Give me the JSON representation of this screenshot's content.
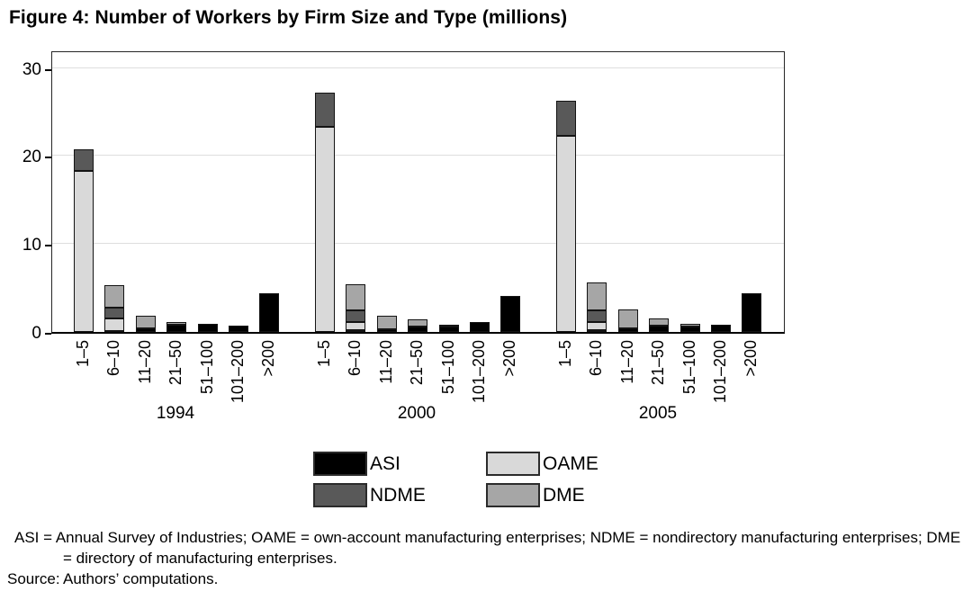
{
  "figure": {
    "title": "Figure 4: Number of Workers by Firm Size and Type (millions)",
    "notes": "ASI = Annual Survey of Industries; OAME = own-account manufacturing enterprises; NDME = nondirectory manufacturing enterprises; DME = directory of manufacturing enterprises.",
    "source_label": "Source:",
    "source_text": "Authors’ computations."
  },
  "chart_data": {
    "type": "bar",
    "stacked": true,
    "title": "Figure 4: Number of Workers by Firm Size and Type (millions)",
    "xlabel": "",
    "ylabel": "",
    "ylim": [
      0,
      32.1
    ],
    "yticks": [
      0,
      10,
      20,
      30
    ],
    "grid": true,
    "legend_position": "bottom",
    "bar_outline_color": "#141414",
    "size_categories": [
      "1–5",
      "6–10",
      "11–20",
      "21–50",
      "51–100",
      "101–200",
      ">200"
    ],
    "groups": [
      "1994",
      "2000",
      "2005"
    ],
    "stack_order_note": "series listed bottom-to-top of stack; values arrays follow size_categories order",
    "series": [
      {
        "name": "ASI",
        "color": "#000000",
        "values": {
          "1994": [
            0,
            0.15,
            0.4,
            0.85,
            0.9,
            0.7,
            4.4
          ],
          "2000": [
            0,
            0.25,
            0.3,
            0.6,
            0.6,
            1.1,
            4.1
          ],
          "2005": [
            0,
            0.25,
            0.4,
            0.7,
            0.65,
            0.8,
            4.4
          ]
        }
      },
      {
        "name": "OAME",
        "color": "#d9d9d9",
        "values": {
          "1994": [
            18.3,
            1.4,
            0,
            0,
            0,
            0,
            0
          ],
          "2000": [
            23.3,
            0.9,
            0,
            0,
            0,
            0,
            0
          ],
          "2005": [
            22.3,
            0.9,
            0,
            0,
            0,
            0,
            0
          ]
        }
      },
      {
        "name": "NDME",
        "color": "#595959",
        "values": {
          "1994": [
            2.5,
            1.2,
            0,
            0,
            0,
            0,
            0
          ],
          "2000": [
            3.9,
            1.3,
            0,
            0,
            0,
            0,
            0
          ],
          "2005": [
            4.0,
            1.3,
            0,
            0,
            0,
            0,
            0
          ]
        }
      },
      {
        "name": "DME",
        "color": "#a6a6a6",
        "values": {
          "1994": [
            0,
            2.55,
            1.45,
            0.3,
            0,
            0,
            0
          ],
          "2000": [
            0,
            2.95,
            1.5,
            0.8,
            0.2,
            0,
            0
          ],
          "2005": [
            0,
            3.15,
            2.1,
            0.8,
            0.3,
            0,
            0
          ]
        }
      }
    ]
  }
}
